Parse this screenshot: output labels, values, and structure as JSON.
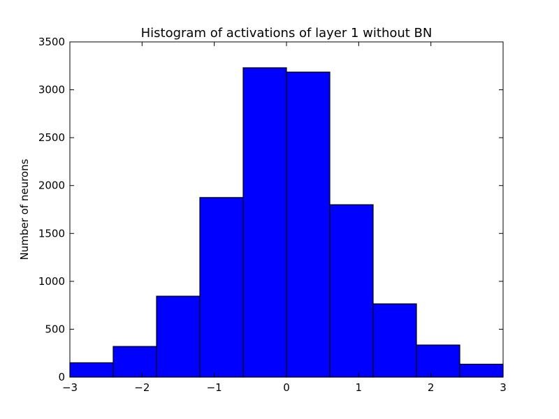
{
  "chart_data": {
    "type": "bar",
    "title": "Histogram of activations of layer 1  without BN",
    "xlabel": "",
    "ylabel": "Number of neurons",
    "xlim": [
      -3,
      3
    ],
    "ylim": [
      0,
      3500
    ],
    "bin_edges": [
      -3,
      -2.4,
      -1.8,
      -1.2,
      -0.6,
      0,
      0.6,
      1.2,
      1.8,
      2.4,
      3
    ],
    "values": [
      150,
      320,
      845,
      1875,
      3230,
      3185,
      1800,
      765,
      335,
      135
    ],
    "bar_color": "#0000ff",
    "edge_color": "#000000",
    "x_ticks": [
      -3,
      -2,
      -1,
      0,
      1,
      2,
      3
    ],
    "x_tick_labels": [
      "−3",
      "−2",
      "−1",
      "0",
      "1",
      "2",
      "3"
    ],
    "y_ticks": [
      0,
      500,
      1000,
      1500,
      2000,
      2500,
      3000,
      3500
    ],
    "y_tick_labels": [
      "0",
      "500",
      "1000",
      "1500",
      "2000",
      "2500",
      "3000",
      "3500"
    ],
    "grid": false,
    "legend": "none"
  }
}
